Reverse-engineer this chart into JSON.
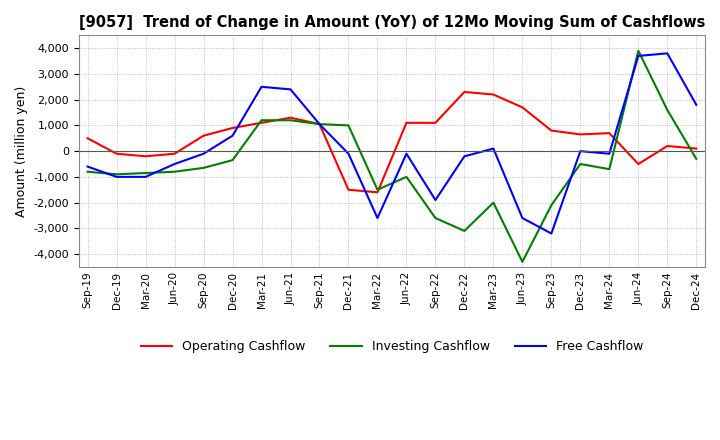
{
  "title": "[9057]  Trend of Change in Amount (YoY) of 12Mo Moving Sum of Cashflows",
  "ylabel": "Amount (million yen)",
  "ylim": [
    -4500,
    4500
  ],
  "yticks": [
    -4000,
    -3000,
    -2000,
    -1000,
    0,
    1000,
    2000,
    3000,
    4000
  ],
  "x_labels": [
    "Sep-19",
    "Dec-19",
    "Mar-20",
    "Jun-20",
    "Sep-20",
    "Dec-20",
    "Mar-21",
    "Jun-21",
    "Sep-21",
    "Dec-21",
    "Mar-22",
    "Jun-22",
    "Sep-22",
    "Dec-22",
    "Mar-23",
    "Jun-23",
    "Sep-23",
    "Dec-23",
    "Mar-24",
    "Jun-24",
    "Sep-24",
    "Dec-24"
  ],
  "operating": [
    500,
    -100,
    -200,
    -100,
    600,
    900,
    1100,
    1300,
    1050,
    -1500,
    -1600,
    1100,
    1100,
    2300,
    2200,
    1700,
    800,
    650,
    700,
    -500,
    200,
    100
  ],
  "investing": [
    -800,
    -900,
    -850,
    -800,
    -650,
    -350,
    1200,
    1200,
    1050,
    1000,
    -1500,
    -1000,
    -2600,
    -3100,
    -2000,
    -4300,
    -2100,
    -500,
    -700,
    3900,
    1600,
    -300
  ],
  "free": [
    -600,
    -1000,
    -1000,
    -500,
    -100,
    600,
    2500,
    2400,
    1050,
    -100,
    -2600,
    -100,
    -1900,
    -200,
    100,
    -2600,
    -3200,
    0,
    -100,
    3700,
    3800,
    1800
  ],
  "operating_color": "#ff0000",
  "investing_color": "#008000",
  "free_color": "#0000ff",
  "background_color": "#ffffff",
  "grid_color": "#b0b0b0",
  "grid_style": "dotted"
}
